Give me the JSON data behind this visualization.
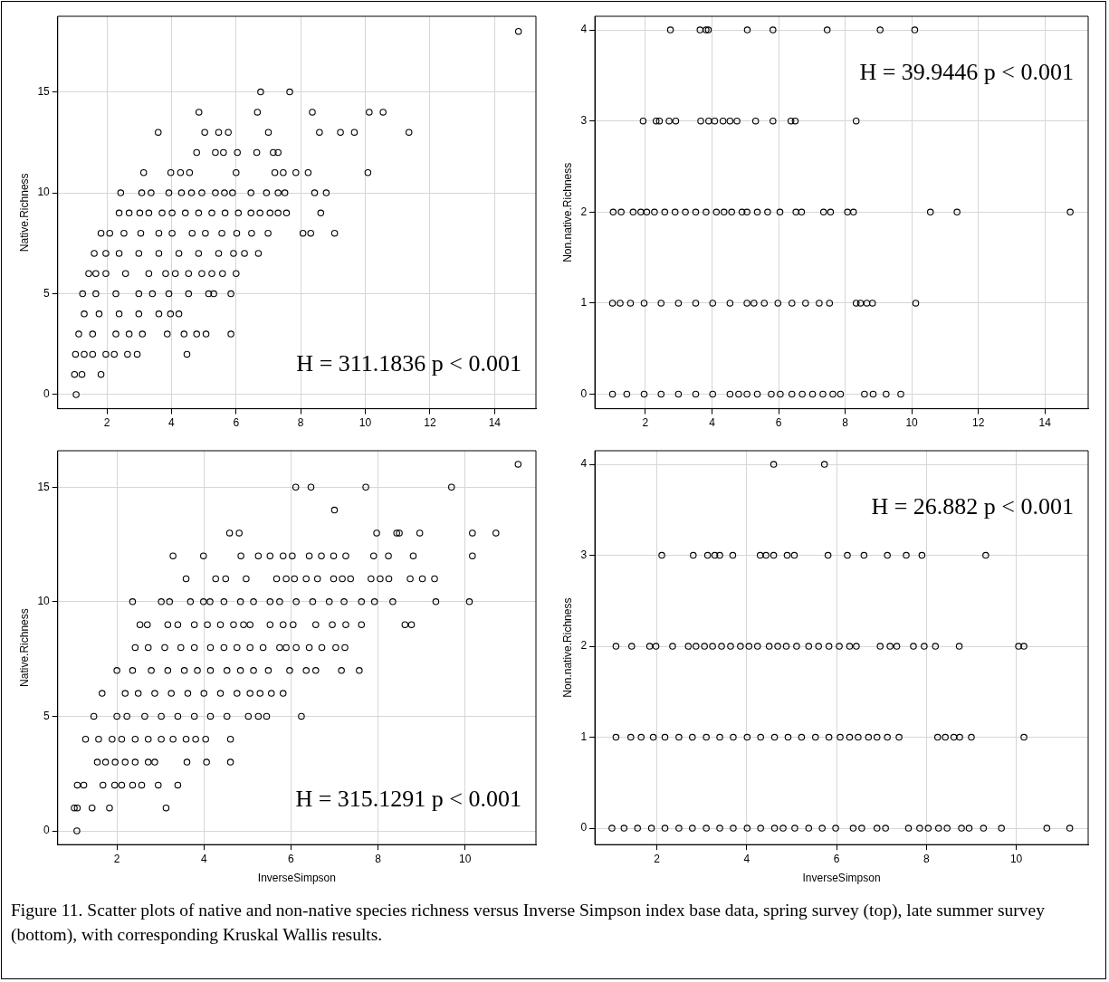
{
  "chart_data": [
    {
      "type": "scatter",
      "ylabel": "Native.Richness",
      "xlim": [
        0.48,
        15.28
      ],
      "ylim": [
        -0.7,
        18.75
      ],
      "xticks": [
        2,
        4,
        6,
        8,
        10,
        12,
        14
      ],
      "yticks": [
        0,
        5,
        10,
        15
      ],
      "grid": true,
      "marker": "circle",
      "legend": false,
      "annotations": [
        "H = 311.1836 p < 0.001"
      ],
      "series": [
        {
          "color": "#000000",
          "x": [
            14.74
          ],
          "values": [
            18
          ]
        },
        {
          "color": "#000000",
          "x": [
            6.76,
            7.66
          ],
          "values": [
            15,
            15
          ]
        },
        {
          "color": "#000000",
          "x": [
            4.85,
            6.66,
            8.36,
            10.12,
            10.55
          ],
          "values": [
            14,
            14,
            14,
            14,
            14
          ]
        },
        {
          "color": "#000000",
          "x": [
            3.59,
            5.03,
            5.46,
            5.76,
            7.0,
            8.58,
            9.23,
            9.66,
            11.35
          ],
          "values": [
            13,
            13,
            13,
            13,
            13,
            13,
            13,
            13,
            13
          ]
        },
        {
          "color": "#000000",
          "x": [
            4.78,
            5.36,
            5.61,
            6.04,
            6.64,
            7.15,
            7.3
          ],
          "values": [
            12,
            12,
            12,
            12,
            12,
            12,
            12
          ]
        },
        {
          "color": "#000000",
          "x": [
            3.14,
            3.98,
            4.28,
            4.56,
            6.0,
            7.2,
            7.46,
            7.85,
            8.23,
            10.08
          ],
          "values": [
            11,
            11,
            11,
            11,
            11,
            11,
            11,
            11,
            11,
            11
          ]
        },
        {
          "color": "#000000",
          "x": [
            2.43,
            3.08,
            3.37,
            3.92,
            4.31,
            4.62,
            4.94,
            5.36,
            5.64,
            5.89,
            6.46,
            6.94,
            7.3,
            7.51,
            8.43,
            8.79
          ],
          "values": [
            10,
            10,
            10,
            10,
            10,
            10,
            10,
            10,
            10,
            10,
            10,
            10,
            10,
            10,
            10,
            10
          ]
        },
        {
          "color": "#000000",
          "x": [
            2.38,
            2.69,
            3.02,
            3.3,
            3.71,
            4.02,
            4.43,
            4.84,
            5.25,
            5.66,
            6.07,
            6.46,
            6.74,
            7.05,
            7.3,
            7.56,
            8.62
          ],
          "values": [
            9,
            9,
            9,
            9,
            9,
            9,
            9,
            9,
            9,
            9,
            9,
            9,
            9,
            9,
            9,
            9,
            9
          ]
        },
        {
          "color": "#000000",
          "x": [
            1.82,
            2.09,
            2.53,
            3.05,
            3.61,
            4.02,
            4.64,
            5.05,
            5.56,
            6.02,
            6.48,
            6.99,
            8.07,
            8.31,
            9.05
          ],
          "values": [
            8,
            8,
            8,
            8,
            8,
            8,
            8,
            8,
            8,
            8,
            8,
            8,
            8,
            8,
            8
          ]
        },
        {
          "color": "#000000",
          "x": [
            1.61,
            1.97,
            2.38,
            2.99,
            3.61,
            4.23,
            4.84,
            5.46,
            5.92,
            6.26,
            6.69
          ],
          "values": [
            7,
            7,
            7,
            7,
            7,
            7,
            7,
            7,
            7,
            7,
            7
          ]
        },
        {
          "color": "#000000",
          "x": [
            1.44,
            1.66,
            1.97,
            2.58,
            3.3,
            3.82,
            4.12,
            4.53,
            4.94,
            5.25,
            5.58,
            6.0
          ],
          "values": [
            6,
            6,
            6,
            6,
            6,
            6,
            6,
            6,
            6,
            6,
            6,
            6
          ]
        },
        {
          "color": "#000000",
          "x": [
            1.25,
            1.66,
            2.28,
            2.99,
            3.41,
            3.92,
            4.53,
            5.15,
            5.31,
            5.84
          ],
          "values": [
            5,
            5,
            5,
            5,
            5,
            5,
            5,
            5,
            5,
            5
          ]
        },
        {
          "color": "#000000",
          "x": [
            1.3,
            1.76,
            2.38,
            2.99,
            3.61,
            3.97,
            4.23
          ],
          "values": [
            4,
            4,
            4,
            4,
            4,
            4,
            4
          ]
        },
        {
          "color": "#000000",
          "x": [
            1.13,
            1.56,
            2.28,
            2.69,
            3.1,
            3.87,
            4.39,
            4.78,
            5.07,
            5.84
          ],
          "values": [
            3,
            3,
            3,
            3,
            3,
            3,
            3,
            3,
            3,
            3
          ]
        },
        {
          "color": "#000000",
          "x": [
            1.03,
            1.3,
            1.56,
            1.97,
            2.23,
            2.64,
            2.94,
            4.48
          ],
          "values": [
            2,
            2,
            2,
            2,
            2,
            2,
            2,
            2
          ]
        },
        {
          "color": "#000000",
          "x": [
            1.0,
            1.23,
            1.82
          ],
          "values": [
            1,
            1,
            1
          ]
        },
        {
          "color": "#000000",
          "x": [
            1.05
          ],
          "values": [
            0
          ]
        }
      ]
    },
    {
      "type": "scatter",
      "ylabel": "Non.native.Richness",
      "xlim": [
        0.48,
        15.3
      ],
      "ylim": [
        -0.16,
        4.15
      ],
      "xticks": [
        2,
        4,
        6,
        8,
        10,
        12,
        14
      ],
      "yticks": [
        0,
        1,
        2,
        3,
        4
      ],
      "grid": true,
      "marker": "circle",
      "legend": false,
      "annotations": [
        "H = 39.9446 p < 0.001"
      ],
      "series": [
        {
          "color": "#000000",
          "x": [
            2.75,
            3.64,
            3.82,
            3.89,
            5.06,
            5.83,
            7.46,
            9.05,
            10.09
          ],
          "values": [
            4,
            4,
            4,
            4,
            4,
            4,
            4,
            4,
            4
          ]
        },
        {
          "color": "#000000",
          "x": [
            1.93,
            2.32,
            2.42,
            2.71,
            2.91,
            3.66,
            3.9,
            4.08,
            4.33,
            4.54,
            4.75,
            5.31,
            5.83,
            6.37,
            6.5,
            8.33
          ],
          "values": [
            3,
            3,
            3,
            3,
            3,
            3,
            3,
            3,
            3,
            3,
            3,
            3,
            3,
            3,
            3,
            3
          ]
        },
        {
          "color": "#000000",
          "x": [
            1.03,
            1.27,
            1.63,
            1.86,
            2.04,
            2.27,
            2.58,
            2.89,
            3.2,
            3.51,
            3.82,
            4.13,
            4.36,
            4.59,
            4.9,
            5.05,
            5.36,
            5.67,
            6.04,
            6.52,
            6.69,
            7.35,
            7.56,
            8.07,
            8.25,
            10.56,
            11.36,
            14.76
          ],
          "values": [
            2,
            2,
            2,
            2,
            2,
            2,
            2,
            2,
            2,
            2,
            2,
            2,
            2,
            2,
            2,
            2,
            2,
            2,
            2,
            2,
            2,
            2,
            2,
            2,
            2,
            2,
            2,
            2
          ]
        },
        {
          "color": "#000000",
          "x": [
            1.01,
            1.24,
            1.55,
            1.96,
            2.47,
            2.99,
            3.51,
            4.02,
            4.54,
            5.05,
            5.26,
            5.57,
            5.98,
            6.4,
            6.81,
            7.22,
            7.53,
            8.33,
            8.46,
            8.65,
            8.82,
            10.12
          ],
          "values": [
            1,
            1,
            1,
            1,
            1,
            1,
            1,
            1,
            1,
            1,
            1,
            1,
            1,
            1,
            1,
            1,
            1,
            1,
            1,
            1,
            1,
            1
          ]
        },
        {
          "color": "#000000",
          "x": [
            1.01,
            1.44,
            1.96,
            2.47,
            2.99,
            3.51,
            4.02,
            4.54,
            4.8,
            5.05,
            5.36,
            5.78,
            6.05,
            6.4,
            6.71,
            7.02,
            7.33,
            7.63,
            7.86,
            8.58,
            8.84,
            9.23,
            9.67
          ],
          "values": [
            0,
            0,
            0,
            0,
            0,
            0,
            0,
            0,
            0,
            0,
            0,
            0,
            0,
            0,
            0,
            0,
            0,
            0,
            0,
            0,
            0,
            0,
            0
          ]
        }
      ]
    },
    {
      "type": "scatter",
      "xlabel": "InverseSimpson",
      "ylabel": "Native.Richness",
      "xlim": [
        0.64,
        11.63
      ],
      "ylim": [
        -0.6,
        16.59
      ],
      "xticks": [
        2,
        4,
        6,
        8,
        10
      ],
      "yticks": [
        0,
        5,
        10,
        15
      ],
      "grid": true,
      "marker": "circle",
      "legend": false,
      "annotations": [
        "H = 315.1291 p < 0.001"
      ],
      "series": [
        {
          "color": "#000000",
          "x": [
            11.22
          ],
          "values": [
            16
          ]
        },
        {
          "color": "#000000",
          "x": [
            6.11,
            6.46,
            7.72,
            9.69
          ],
          "values": [
            15,
            15,
            15,
            15
          ]
        },
        {
          "color": "#000000",
          "x": [
            7.0
          ],
          "values": [
            14
          ]
        },
        {
          "color": "#000000",
          "x": [
            4.59,
            4.81,
            7.97,
            8.43,
            8.49,
            8.96,
            10.17,
            10.71
          ],
          "values": [
            13,
            13,
            13,
            13,
            13,
            13,
            13,
            13
          ]
        },
        {
          "color": "#000000",
          "x": [
            3.29,
            3.99,
            4.85,
            5.25,
            5.52,
            5.82,
            6.03,
            6.42,
            6.7,
            6.98,
            7.26,
            7.9,
            8.24,
            8.81,
            10.17
          ],
          "values": [
            12,
            12,
            12,
            12,
            12,
            12,
            12,
            12,
            12,
            12,
            12,
            12,
            12,
            12,
            12
          ]
        },
        {
          "color": "#000000",
          "x": [
            3.59,
            4.27,
            4.5,
            4.97,
            5.67,
            5.89,
            6.08,
            6.35,
            6.61,
            6.98,
            7.18,
            7.37,
            7.84,
            8.05,
            8.25,
            8.74,
            9.02,
            9.3
          ],
          "values": [
            11,
            11,
            11,
            11,
            11,
            11,
            11,
            11,
            11,
            11,
            11,
            11,
            11,
            11,
            11,
            11,
            11,
            11
          ]
        },
        {
          "color": "#000000",
          "x": [
            2.36,
            3.02,
            3.21,
            3.69,
            3.99,
            4.14,
            4.46,
            4.84,
            5.14,
            5.52,
            5.74,
            6.12,
            6.5,
            6.88,
            7.22,
            7.62,
            7.92,
            8.34,
            9.33,
            10.1
          ],
          "values": [
            10,
            10,
            10,
            10,
            10,
            10,
            10,
            10,
            10,
            10,
            10,
            10,
            10,
            10,
            10,
            10,
            10,
            10,
            10,
            10
          ]
        },
        {
          "color": "#000000",
          "x": [
            2.53,
            2.7,
            3.17,
            3.4,
            3.78,
            4.08,
            4.38,
            4.68,
            4.91,
            5.06,
            5.52,
            5.82,
            6.05,
            6.57,
            6.95,
            7.26,
            7.62,
            8.62,
            8.77
          ],
          "values": [
            9,
            9,
            9,
            9,
            9,
            9,
            9,
            9,
            9,
            9,
            9,
            9,
            9,
            9,
            9,
            9,
            9,
            9,
            9
          ]
        },
        {
          "color": "#000000",
          "x": [
            2.42,
            2.72,
            3.1,
            3.47,
            3.78,
            4.15,
            4.46,
            4.76,
            5.06,
            5.36,
            5.74,
            5.89,
            6.12,
            6.42,
            6.71,
            7.03,
            7.24
          ],
          "values": [
            8,
            8,
            8,
            8,
            8,
            8,
            8,
            8,
            8,
            8,
            8,
            8,
            8,
            8,
            8,
            8,
            8
          ]
        },
        {
          "color": "#000000",
          "x": [
            2.0,
            2.36,
            2.79,
            3.17,
            3.55,
            3.85,
            4.15,
            4.53,
            4.84,
            5.14,
            5.48,
            5.97,
            6.35,
            6.57,
            7.16,
            7.57
          ],
          "values": [
            7,
            7,
            7,
            7,
            7,
            7,
            7,
            7,
            7,
            7,
            7,
            7,
            7,
            7,
            7,
            7
          ]
        },
        {
          "color": "#000000",
          "x": [
            1.66,
            2.19,
            2.49,
            2.87,
            3.25,
            3.63,
            4.0,
            4.38,
            4.76,
            5.06,
            5.29,
            5.55,
            5.82
          ],
          "values": [
            6,
            6,
            6,
            6,
            6,
            6,
            6,
            6,
            6,
            6,
            6,
            6,
            6
          ]
        },
        {
          "color": "#000000",
          "x": [
            1.47,
            2.0,
            2.23,
            2.64,
            3.02,
            3.4,
            3.78,
            4.15,
            4.53,
            5.02,
            5.25,
            5.44,
            6.24
          ],
          "values": [
            5,
            5,
            5,
            5,
            5,
            5,
            5,
            5,
            5,
            5,
            5,
            5,
            5
          ]
        },
        {
          "color": "#000000",
          "x": [
            1.28,
            1.58,
            1.89,
            2.11,
            2.42,
            2.72,
            3.02,
            3.29,
            3.59,
            3.81,
            4.04,
            4.61
          ],
          "values": [
            4,
            4,
            4,
            4,
            4,
            4,
            4,
            4,
            4,
            4,
            4,
            4
          ]
        },
        {
          "color": "#000000",
          "x": [
            1.55,
            1.74,
            1.96,
            2.19,
            2.42,
            2.72,
            2.87,
            3.61,
            4.06,
            4.61
          ],
          "values": [
            3,
            3,
            3,
            3,
            3,
            3,
            3,
            3,
            3,
            3
          ]
        },
        {
          "color": "#000000",
          "x": [
            1.09,
            1.24,
            1.68,
            1.95,
            2.11,
            2.36,
            2.57,
            2.95,
            3.4
          ],
          "values": [
            2,
            2,
            2,
            2,
            2,
            2,
            2,
            2,
            2
          ]
        },
        {
          "color": "#000000",
          "x": [
            1.02,
            1.09,
            1.43,
            1.83,
            3.13
          ],
          "values": [
            1,
            1,
            1,
            1,
            1
          ]
        },
        {
          "color": "#000000",
          "x": [
            1.08
          ],
          "values": [
            0
          ]
        }
      ]
    },
    {
      "type": "scatter",
      "xlabel": "InverseSimpson",
      "ylabel": "Non.native.Richness",
      "xlim": [
        0.62,
        11.6
      ],
      "ylim": [
        -0.18,
        4.15
      ],
      "xticks": [
        2,
        4,
        6,
        8,
        10
      ],
      "yticks": [
        0,
        1,
        2,
        3,
        4
      ],
      "grid": true,
      "marker": "circle",
      "legend": false,
      "annotations": [
        "H = 26.882 p < 0.001",
        "Figure 11. Scatter plots of native and non-native species richness versus Inverse Simpson index base data, spring survey (top), late summer survey (bottom), with corresponding Kruskal Wallis results."
      ],
      "series": [
        {
          "color": "#000000",
          "x": [
            4.6,
            5.73
          ],
          "values": [
            4,
            4
          ]
        },
        {
          "color": "#000000",
          "x": [
            2.11,
            2.81,
            3.13,
            3.29,
            3.4,
            3.69,
            4.3,
            4.43,
            4.6,
            4.9,
            5.06,
            5.81,
            6.24,
            6.61,
            7.13,
            7.55,
            7.9,
            9.32
          ],
          "values": [
            3,
            3,
            3,
            3,
            3,
            3,
            3,
            3,
            3,
            3,
            3,
            3,
            3,
            3,
            3,
            3,
            3,
            3
          ]
        },
        {
          "color": "#000000",
          "x": [
            1.09,
            1.44,
            1.84,
            1.98,
            2.35,
            2.7,
            2.87,
            3.06,
            3.24,
            3.44,
            3.64,
            3.86,
            4.05,
            4.24,
            4.5,
            4.69,
            4.88,
            5.11,
            5.38,
            5.6,
            5.83,
            6.06,
            6.29,
            6.44,
            6.97,
            7.19,
            7.34,
            7.71,
            7.95,
            8.2,
            8.73,
            10.05,
            10.17
          ],
          "values": [
            2,
            2,
            2,
            2,
            2,
            2,
            2,
            2,
            2,
            2,
            2,
            2,
            2,
            2,
            2,
            2,
            2,
            2,
            2,
            2,
            2,
            2,
            2,
            2,
            2,
            2,
            2,
            2,
            2,
            2,
            2,
            2,
            2
          ]
        },
        {
          "color": "#000000",
          "x": [
            1.09,
            1.42,
            1.65,
            1.92,
            2.18,
            2.49,
            2.79,
            3.1,
            3.4,
            3.7,
            4.01,
            4.31,
            4.62,
            4.92,
            5.22,
            5.53,
            5.83,
            6.08,
            6.29,
            6.48,
            6.71,
            6.9,
            7.13,
            7.39,
            8.25,
            8.42,
            8.61,
            8.74,
            9.0,
            10.17
          ],
          "values": [
            1,
            1,
            1,
            1,
            1,
            1,
            1,
            1,
            1,
            1,
            1,
            1,
            1,
            1,
            1,
            1,
            1,
            1,
            1,
            1,
            1,
            1,
            1,
            1,
            1,
            1,
            1,
            1,
            1,
            1
          ]
        },
        {
          "color": "#000000",
          "x": [
            1.0,
            1.27,
            1.57,
            1.88,
            2.18,
            2.49,
            2.79,
            3.1,
            3.4,
            3.7,
            4.01,
            4.31,
            4.62,
            4.81,
            5.07,
            5.38,
            5.68,
            5.98,
            6.37,
            6.56,
            6.9,
            7.09,
            7.6,
            7.85,
            8.04,
            8.27,
            8.46,
            8.78,
            8.95,
            9.27,
            9.67,
            10.68,
            11.19
          ],
          "values": [
            0,
            0,
            0,
            0,
            0,
            0,
            0,
            0,
            0,
            0,
            0,
            0,
            0,
            0,
            0,
            0,
            0,
            0,
            0,
            0,
            0,
            0,
            0,
            0,
            0,
            0,
            0,
            0,
            0,
            0,
            0,
            0,
            0
          ]
        }
      ]
    }
  ]
}
